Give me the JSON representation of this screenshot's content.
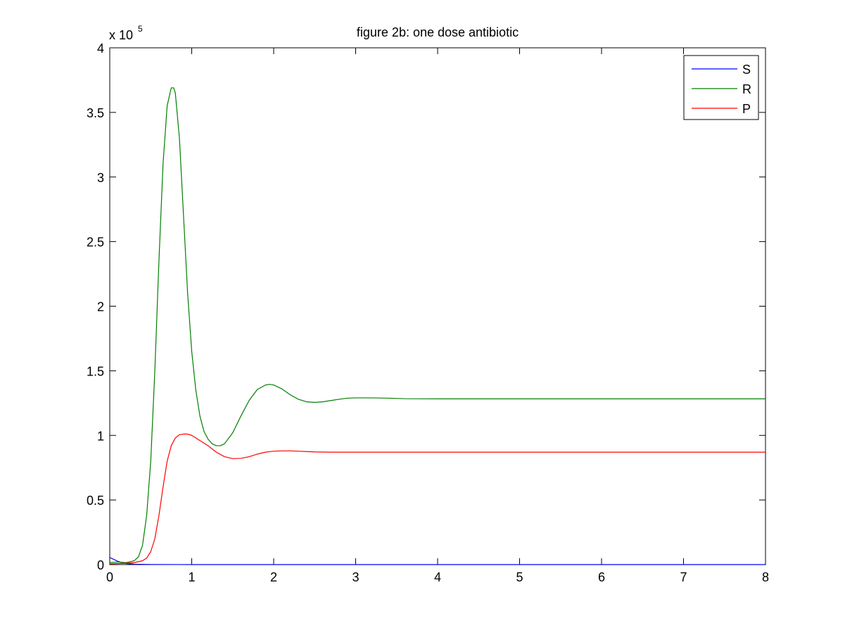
{
  "chart_data": {
    "type": "line",
    "title": "figure 2b: one dose antibiotic",
    "xlabel": "",
    "ylabel": "",
    "y_multiplier_label": {
      "base": "x 10",
      "exponent": "5"
    },
    "xlim": [
      0,
      8
    ],
    "ylim": [
      0,
      4
    ],
    "xticks": [
      0,
      1,
      2,
      3,
      4,
      5,
      6,
      7,
      8
    ],
    "yticks": [
      0,
      0.5,
      1,
      1.5,
      2,
      2.5,
      3,
      3.5,
      4
    ],
    "ytick_labels": [
      "0",
      "0.5",
      "1",
      "1.5",
      "2",
      "2.5",
      "3",
      "3.5",
      "4"
    ],
    "grid": false,
    "legend_position": "top-right",
    "series": [
      {
        "name": "S",
        "color": "#0000ff",
        "x": [
          0,
          0.05,
          0.1,
          0.15,
          0.2,
          0.3,
          0.5,
          1,
          2,
          4,
          6,
          8
        ],
        "y": [
          0.055,
          0.04,
          0.025,
          0.015,
          0.008,
          0.003,
          0.001,
          0,
          0,
          0,
          0,
          0
        ]
      },
      {
        "name": "R",
        "color": "#007f00",
        "x": [
          0,
          0.1,
          0.2,
          0.3,
          0.35,
          0.4,
          0.45,
          0.5,
          0.55,
          0.6,
          0.65,
          0.7,
          0.75,
          0.78,
          0.8,
          0.85,
          0.9,
          0.95,
          1.0,
          1.05,
          1.1,
          1.15,
          1.2,
          1.25,
          1.3,
          1.35,
          1.4,
          1.5,
          1.6,
          1.7,
          1.8,
          1.9,
          1.95,
          2.0,
          2.1,
          2.2,
          2.3,
          2.4,
          2.5,
          2.6,
          2.7,
          2.8,
          2.9,
          3.0,
          3.2,
          3.4,
          3.6,
          4.0,
          5.0,
          6.0,
          7.0,
          8.0
        ],
        "y": [
          0.015,
          0.02,
          0.015,
          0.03,
          0.06,
          0.15,
          0.38,
          0.8,
          1.5,
          2.35,
          3.1,
          3.55,
          3.69,
          3.69,
          3.65,
          3.3,
          2.7,
          2.1,
          1.65,
          1.35,
          1.15,
          1.03,
          0.97,
          0.935,
          0.92,
          0.92,
          0.935,
          1.02,
          1.15,
          1.27,
          1.355,
          1.39,
          1.395,
          1.39,
          1.36,
          1.315,
          1.28,
          1.26,
          1.255,
          1.26,
          1.27,
          1.28,
          1.288,
          1.29,
          1.29,
          1.288,
          1.284,
          1.283,
          1.283,
          1.283,
          1.283,
          1.283
        ]
      },
      {
        "name": "P",
        "color": "#ff0000",
        "x": [
          0,
          0.1,
          0.2,
          0.3,
          0.4,
          0.45,
          0.5,
          0.55,
          0.6,
          0.65,
          0.7,
          0.75,
          0.8,
          0.85,
          0.9,
          0.95,
          1.0,
          1.05,
          1.1,
          1.2,
          1.3,
          1.4,
          1.5,
          1.6,
          1.7,
          1.8,
          1.9,
          2.0,
          2.1,
          2.2,
          2.3,
          2.4,
          2.5,
          2.7,
          3.0,
          3.5,
          4.0,
          5.0,
          6.0,
          7.0,
          8.0
        ],
        "y": [
          0.005,
          0.008,
          0.01,
          0.015,
          0.03,
          0.05,
          0.1,
          0.2,
          0.38,
          0.6,
          0.8,
          0.92,
          0.98,
          1.005,
          1.01,
          1.01,
          1.0,
          0.98,
          0.96,
          0.92,
          0.87,
          0.835,
          0.82,
          0.822,
          0.835,
          0.855,
          0.87,
          0.878,
          0.88,
          0.88,
          0.878,
          0.875,
          0.872,
          0.87,
          0.87,
          0.87,
          0.87,
          0.87,
          0.87,
          0.87,
          0.87
        ]
      }
    ]
  }
}
